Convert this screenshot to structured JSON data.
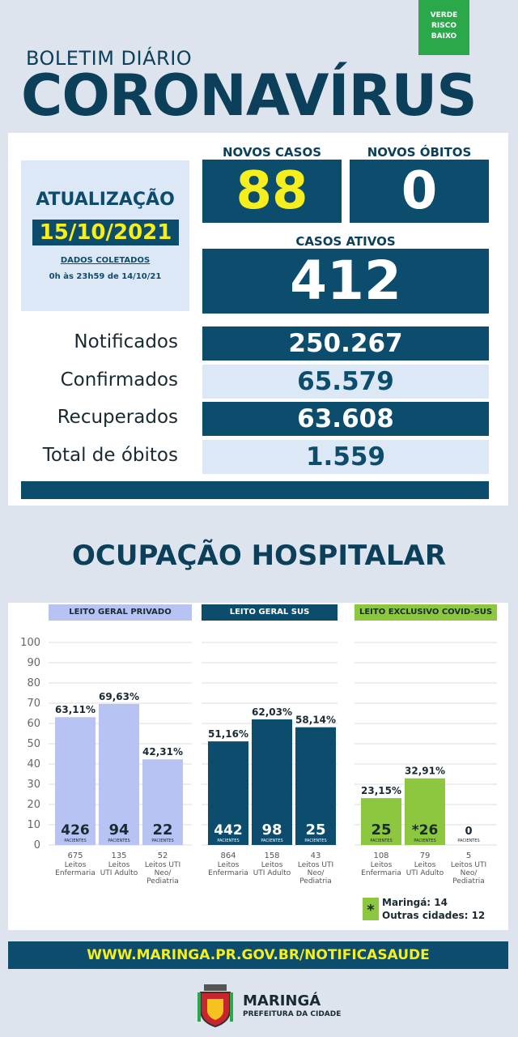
{
  "risk_badge": [
    "VERDE",
    "RISCO",
    "BAIXO"
  ],
  "header": {
    "subtitle": "BOLETIM DIÁRIO",
    "title": "CORONAVÍRUS"
  },
  "update": {
    "label": "ATUALIZAÇÃO",
    "date": "15/10/2021",
    "collected_title": "DADOS COLETADOS",
    "collected_range": "0h às 23h59 de 14/10/21"
  },
  "stats": {
    "new_cases_label": "NOVOS CASOS",
    "new_cases": "88",
    "new_deaths_label": "NOVOS ÓBITOS",
    "new_deaths": "0",
    "active_label": "CASOS ATIVOS",
    "active": "412"
  },
  "totals": [
    {
      "label": "Notificados",
      "value": "250.267"
    },
    {
      "label": "Confirmados",
      "value": "65.579"
    },
    {
      "label": "Recuperados",
      "value": "63.608"
    },
    {
      "label": "Total de óbitos",
      "value": "1.559"
    }
  ],
  "hospital_title": "OCUPAÇÃO HOSPITALAR",
  "colors": {
    "navy": "#0c4d6d",
    "private": "#b7c3f3",
    "covid": "#8dc63f",
    "yellow": "#f6ee1d"
  },
  "chart_data": {
    "type": "bar",
    "ylim": [
      0,
      100
    ],
    "yticks": [
      0,
      10,
      20,
      30,
      40,
      50,
      60,
      70,
      80,
      90,
      100
    ],
    "patients_label": "PACIENTES",
    "groups": [
      {
        "name": "LEITO GERAL PRIVADO",
        "color": "#b7c3f3",
        "bars": [
          {
            "value": 63.11,
            "pct_label": "63,11%",
            "patients": "426",
            "beds": "675",
            "bed_type": [
              "Leitos",
              "Enfermaria"
            ]
          },
          {
            "value": 69.63,
            "pct_label": "69,63%",
            "patients": "94",
            "beds": "135",
            "bed_type": [
              "Leitos",
              "UTI Adulto"
            ]
          },
          {
            "value": 42.31,
            "pct_label": "42,31%",
            "patients": "22",
            "beds": "52",
            "bed_type": [
              "Leitos UTI",
              "Neo/",
              "Pediatria"
            ]
          }
        ]
      },
      {
        "name": "LEITO GERAL SUS",
        "color": "#0c4d6d",
        "bars": [
          {
            "value": 51.16,
            "pct_label": "51,16%",
            "patients": "442",
            "beds": "864",
            "bed_type": [
              "Leitos",
              "Enfermaria"
            ]
          },
          {
            "value": 62.03,
            "pct_label": "62,03%",
            "patients": "98",
            "beds": "158",
            "bed_type": [
              "Leitos",
              "UTI Adulto"
            ]
          },
          {
            "value": 58.14,
            "pct_label": "58,14%",
            "patients": "25",
            "beds": "43",
            "bed_type": [
              "Leitos UTI",
              "Neo/",
              "Pediatria"
            ]
          }
        ]
      },
      {
        "name": "LEITO EXCLUSIVO COVID-SUS",
        "color": "#8dc63f",
        "bars": [
          {
            "value": 23.15,
            "pct_label": "23,15%",
            "patients": "25",
            "beds": "108",
            "bed_type": [
              "Leitos",
              "Enfermaria"
            ]
          },
          {
            "value": 32.91,
            "pct_label": "32,91%",
            "patients": "*26",
            "beds": "79",
            "bed_type": [
              "Leitos",
              "UTI Adulto"
            ]
          },
          {
            "value": 0,
            "pct_label": "",
            "patients": "0",
            "beds": "5",
            "bed_type": [
              "Leitos UTI",
              "Neo/",
              "Pediatria"
            ]
          }
        ]
      }
    ],
    "footnote": {
      "symbol": "*",
      "lines": [
        "Maringá: 14",
        "Outras cidades: 12"
      ]
    }
  },
  "footer": {
    "url": "WWW.MARINGA.PR.GOV.BR/NOTIFICASAUDE",
    "city": "MARINGÁ",
    "city_sub": "PREFEITURA DA CIDADE"
  }
}
